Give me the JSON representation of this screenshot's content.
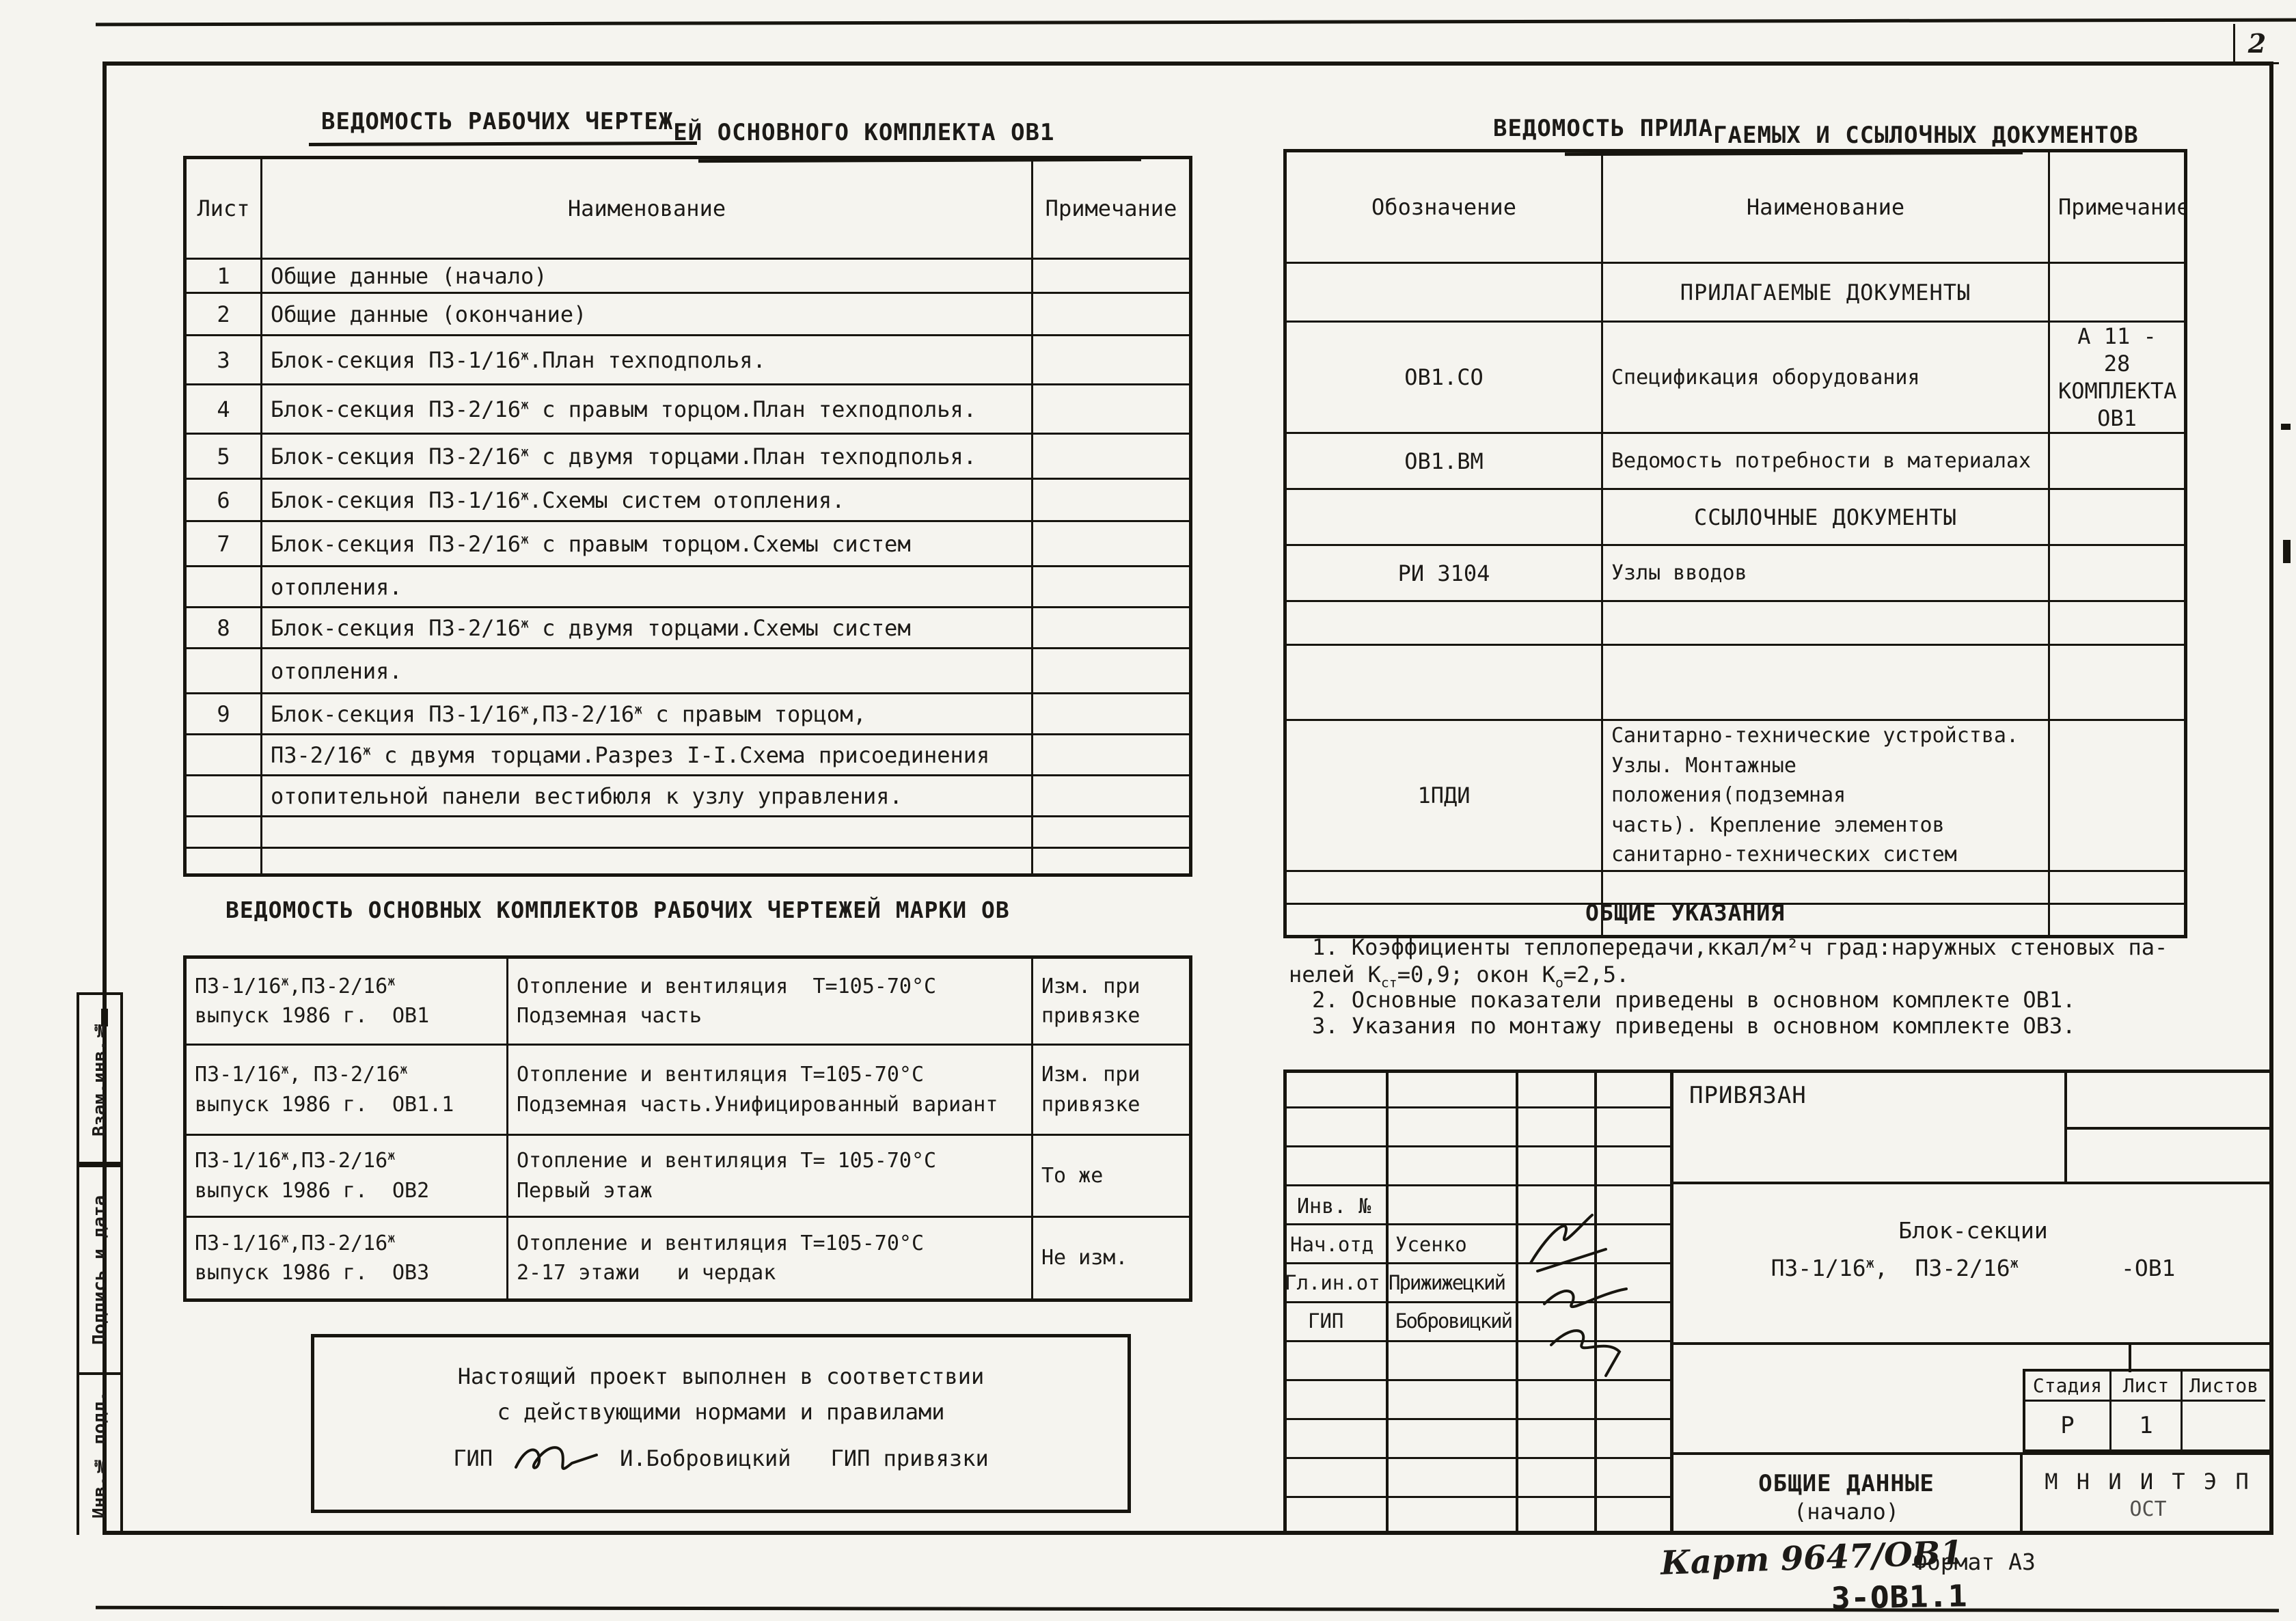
{
  "page": {
    "number": "2",
    "format_label": "Формат А3",
    "doc_number": "3-ОВ1.1",
    "handwritten_code": "Карт 9647/ОВ1"
  },
  "colors": {
    "paper": "#f5f4ef",
    "ink": "#17150f"
  },
  "left_table": {
    "title_part1": "ВЕДОМОСТЬ РАБОЧИХ ЧЕРТЕЖ",
    "title_part2": "ЕЙ ОСНОВНОГО КОМПЛЕКТА ОВ1",
    "headers": {
      "sheet": "Лист",
      "name": "Наименование",
      "note": "Примечание"
    },
    "rows": [
      {
        "num": "1",
        "name": "Общие данные (начало)",
        "note": ""
      },
      {
        "num": "2",
        "name": "Общие данные (окончание)",
        "note": ""
      },
      {
        "num": "3",
        "name": "Блок-секция П3-1/16ж.План техподполья.",
        "note": ""
      },
      {
        "num": "4",
        "name": "Блок-секция П3-2/16ж с правым торцом.План техподполья.",
        "note": ""
      },
      {
        "num": "5",
        "name": "Блок-секция П3-2/16ж с двумя торцами.План техподполья.",
        "note": ""
      },
      {
        "num": "6",
        "name": "Блок-секция П3-1/16ж.Схемы систем отопления.",
        "note": ""
      },
      {
        "num": "7",
        "name": "Блок-секция П3-2/16ж с правым торцом.Схемы систем",
        "note": ""
      },
      {
        "num": "",
        "name": "отопления.",
        "note": ""
      },
      {
        "num": "8",
        "name": "Блок-секция П3-2/16ж с двумя торцами.Схемы систем",
        "note": ""
      },
      {
        "num": "",
        "name": "отопления.",
        "note": ""
      },
      {
        "num": "9",
        "name": "Блок-секция П3-1/16ж,П3-2/16ж с правым торцом,",
        "note": ""
      },
      {
        "num": "",
        "name": "П3-2/16ж с двумя торцами.Разрез I-I.Схема присоединения",
        "note": ""
      },
      {
        "num": "",
        "name": "отопительной панели вестибюля к узлу управления.",
        "note": ""
      },
      {
        "num": "",
        "name": "",
        "note": ""
      },
      {
        "num": "",
        "name": "",
        "note": ""
      }
    ]
  },
  "ref_table": {
    "title_part1": "ВЕДОМОСТЬ ПРИЛА",
    "title_part2": "ГАЕМЫХ И ССЫЛОЧНЫХ ДОКУМЕНТОВ",
    "headers": {
      "code": "Обозначение",
      "name": "Наименование",
      "note": "Примечание"
    },
    "section1": "ПРИЛАГАЕМЫЕ ДОКУМЕНТЫ",
    "rows1": [
      {
        "code": "ОВ1.СО",
        "name": "Спецификация оборудования",
        "note": "А 11 - 28\nКОМПЛЕКТА ОВ1"
      },
      {
        "code": "ОВ1.ВМ",
        "name": "Ведомость потребности в материалах",
        "note": ""
      }
    ],
    "section2": "ССЫЛОЧНЫЕ ДОКУМЕНТЫ",
    "rows2": [
      {
        "code": "РИ 3104",
        "name": "Узлы вводов",
        "note": ""
      }
    ],
    "row_pdi": {
      "code": "1ПДИ",
      "name": "Санитарно-технические устройства.\nУзлы. Монтажные положения(подземная\nчасть). Крепление элементов\nсанитарно-технических систем",
      "note": ""
    }
  },
  "sets_table": {
    "title": "ВЕДОМОСТЬ ОСНОВНЫХ КОМПЛЕКТОВ РАБОЧИХ ЧЕРТЕЖЕЙ МАРКИ ОВ",
    "rows": [
      {
        "code": "П3-1/16ж,П3-2/16ж\nвыпуск 1986 г.  ОВ1",
        "name": "Отопление и вентиляция  Т=105-70°С\nПодземная часть",
        "note": "Изм. при\nпривязке"
      },
      {
        "code": "П3-1/16ж, П3-2/16ж\nвыпуск 1986 г.  ОВ1.1",
        "name": "Отопление и вентиляция Т=105-70°С\nПодземная часть.Унифицированный вариант",
        "note": "Изм. при\nпривязке"
      },
      {
        "code": "П3-1/16ж,П3-2/16ж\nвыпуск 1986 г.  ОВ2",
        "name": "Отопление и вентиляция Т= 105-70°С\nПервый этаж",
        "note": "То же"
      },
      {
        "code": "П3-1/16ж,П3-2/16ж\nвыпуск 1986 г.  ОВ3",
        "name": "Отопление и вентиляция Т=105-70°С\n2-17 этажи   и чердак",
        "note": "Не изм."
      }
    ]
  },
  "notes": {
    "title": "ОБЩИЕ УКАЗАНИЯ",
    "line1": "1. Коэффициенты теплопередачи,ккал/м²ч град:наружных стеновых па-",
    "line2": "нелей Кст=0,9; окон Ко=2,5.",
    "line3": "2. Основные показатели приведены в основном комплекте ОВ1.",
    "line4": "3. Указания по монтажу приведены в основном комплекте ОВ3."
  },
  "project_note": {
    "line1": "Настоящий проект выполнен в соответствии",
    "line2": "с действующими нормами и правилами",
    "gip_label": "ГИП",
    "gip_name": "И.Бобровицкий",
    "gip2_label": "ГИП привязки"
  },
  "title_block": {
    "privyazan": "ПРИВЯЗАН",
    "inv_label": "Инв. №",
    "roles": [
      {
        "role": "Нач.отд",
        "name": "Усенко"
      },
      {
        "role": "Гл.ин.от",
        "name": "Прижижецкий"
      },
      {
        "role": "ГИП",
        "name": "Бобровицкий"
      }
    ],
    "object_line1": "Блок-секции",
    "object_line2": "П3-1/16ж,  П3-2/16ж",
    "object_code": "-ОВ1",
    "stage_label": "Стадия",
    "sheet_label": "Лист",
    "sheets_label": "Листов",
    "stage_value": "Р",
    "sheet_value": "1",
    "sheets_value": "",
    "doc_title_line1": "ОБЩИЕ ДАННЫЕ",
    "doc_title_line2": "(начало)",
    "org_line1": "М Н И И Т Э П",
    "org_line2": "ОСТ"
  },
  "sidebar": {
    "labels": [
      "Взам.инв.№",
      "Подпись и дата",
      "Инв.№ подл."
    ]
  }
}
